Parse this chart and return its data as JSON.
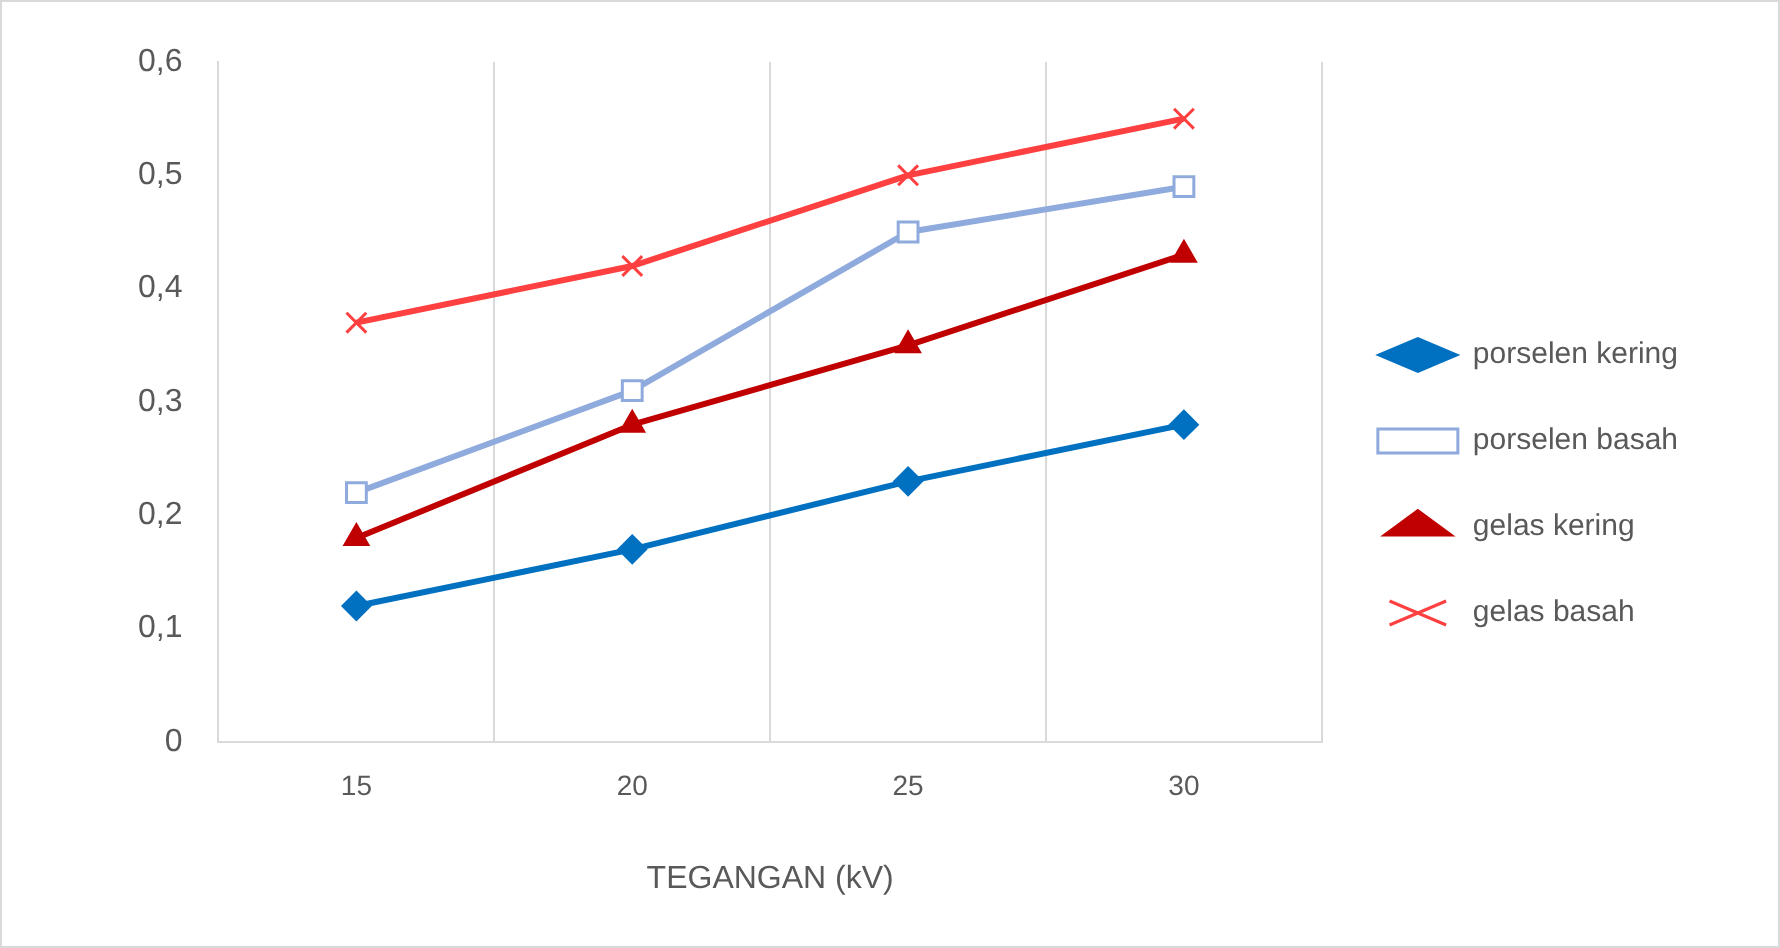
{
  "chart_data": {
    "type": "line",
    "xlabel": "TEGANGAN (kV)",
    "categories": [
      "15",
      "20",
      "25",
      "30"
    ],
    "series": [
      {
        "name": "porselen kering",
        "color": "#0070c0",
        "marker": "diamond",
        "values": [
          0.12,
          0.17,
          0.23,
          0.28
        ]
      },
      {
        "name": "porselen basah",
        "color": "#8faadc",
        "marker": "square",
        "values": [
          0.22,
          0.31,
          0.45,
          0.49
        ]
      },
      {
        "name": "gelas kering",
        "color": "#c00000",
        "marker": "triangle",
        "values": [
          0.18,
          0.28,
          0.35,
          0.43
        ]
      },
      {
        "name": "gelas basah",
        "color": "#ff4040",
        "marker": "cross",
        "values": [
          0.37,
          0.42,
          0.5,
          0.55
        ]
      }
    ],
    "ylim": [
      0,
      0.6
    ],
    "yticks": [
      0,
      {
        "value": 0.1,
        "label": "0,1"
      },
      {
        "value": 0.2,
        "label": "0,2"
      },
      {
        "value": 0.3,
        "label": "0,3"
      },
      {
        "value": 0.4,
        "label": "0,4"
      },
      {
        "value": 0.5,
        "label": "0,5"
      },
      {
        "value": 0.6,
        "label": "0,6"
      }
    ],
    "grid": "x",
    "legend": "right",
    "line_style": "solid"
  }
}
